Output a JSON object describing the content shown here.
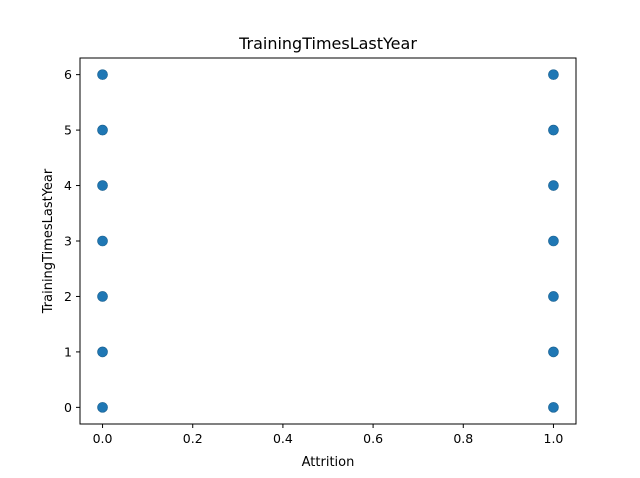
{
  "chart_data": {
    "type": "scatter",
    "title": "TrainingTimesLastYear",
    "xlabel": "Attrition",
    "ylabel": "TrainingTimesLastYear",
    "xlim": [
      -0.05,
      1.05
    ],
    "ylim": [
      -0.3,
      6.3
    ],
    "x_ticks": [
      "0.0",
      "0.2",
      "0.4",
      "0.6",
      "0.8",
      "1.0"
    ],
    "y_ticks": [
      "0",
      "1",
      "2",
      "3",
      "4",
      "5",
      "6"
    ],
    "grid": false,
    "marker_color": "#1f77b4",
    "points": [
      {
        "x": 0,
        "y": 0
      },
      {
        "x": 0,
        "y": 1
      },
      {
        "x": 0,
        "y": 2
      },
      {
        "x": 0,
        "y": 3
      },
      {
        "x": 0,
        "y": 4
      },
      {
        "x": 0,
        "y": 5
      },
      {
        "x": 0,
        "y": 6
      },
      {
        "x": 1,
        "y": 0
      },
      {
        "x": 1,
        "y": 1
      },
      {
        "x": 1,
        "y": 2
      },
      {
        "x": 1,
        "y": 3
      },
      {
        "x": 1,
        "y": 4
      },
      {
        "x": 1,
        "y": 5
      },
      {
        "x": 1,
        "y": 6
      }
    ]
  }
}
